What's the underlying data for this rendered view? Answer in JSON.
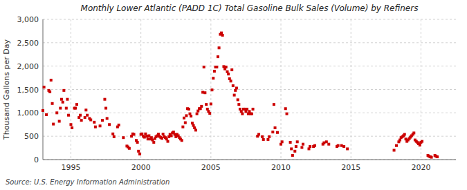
{
  "chart_data": {
    "type": "scatter",
    "title": "Monthly Lower Atlantic (PADD 1C) Total Gasoline Bulk Sales (Volume) by Refiners",
    "y_label": "Thousand Gallons per Day",
    "annotations": [
      "Source: U.S. Energy Information Administration"
    ],
    "color": "#cc0000",
    "marker": "square",
    "grid": true,
    "xlim": [
      1993.0,
      2022.5
    ],
    "ylim": [
      0,
      3000
    ],
    "xticks": [
      1995,
      2000,
      2005,
      2010,
      2015,
      2020
    ],
    "yticks": [
      0,
      500,
      {
        "value": 1000,
        "label": "1,000"
      },
      {
        "value": 1500,
        "label": "1,500"
      },
      {
        "value": 2000,
        "label": "2,000"
      },
      {
        "value": 2500,
        "label": "2,500"
      },
      {
        "value": 3000,
        "label": "3,000"
      }
    ],
    "x": [
      1993.0,
      1993.08,
      1993.25,
      1993.42,
      1993.5,
      1993.58,
      1993.67,
      1993.75,
      1994.0,
      1994.17,
      1994.25,
      1994.33,
      1994.42,
      1994.5,
      1994.67,
      1994.75,
      1994.83,
      1995.0,
      1995.08,
      1995.25,
      1995.33,
      1995.42,
      1995.58,
      1995.67,
      1995.75,
      1996.0,
      1996.08,
      1996.17,
      1996.33,
      1996.42,
      1996.67,
      1996.75,
      1997.08,
      1997.25,
      1997.42,
      1997.5,
      1997.58,
      1997.75,
      1998.0,
      1998.08,
      1998.33,
      1998.42,
      1998.75,
      1999.0,
      1999.08,
      1999.17,
      1999.33,
      1999.42,
      1999.5,
      1999.67,
      1999.75,
      1999.83,
      1999.92,
      2000.0,
      2000.08,
      2000.17,
      2000.25,
      2000.33,
      2000.42,
      2000.5,
      2000.58,
      2000.67,
      2000.75,
      2000.83,
      2000.92,
      2001.0,
      2001.08,
      2001.17,
      2001.25,
      2001.33,
      2001.42,
      2001.5,
      2001.58,
      2001.67,
      2001.75,
      2001.83,
      2001.92,
      2002.0,
      2002.08,
      2002.17,
      2002.25,
      2002.33,
      2002.42,
      2002.5,
      2002.58,
      2002.67,
      2002.75,
      2002.83,
      2002.92,
      2003.0,
      2003.08,
      2003.17,
      2003.25,
      2003.33,
      2003.42,
      2003.5,
      2003.58,
      2003.67,
      2003.75,
      2003.83,
      2003.92,
      2004.0,
      2004.08,
      2004.17,
      2004.25,
      2004.33,
      2004.42,
      2004.5,
      2004.58,
      2004.67,
      2004.75,
      2004.83,
      2004.92,
      2005.0,
      2005.08,
      2005.17,
      2005.25,
      2005.33,
      2005.42,
      2005.5,
      2005.58,
      2005.67,
      2005.75,
      2005.83,
      2005.92,
      2006.0,
      2006.08,
      2006.17,
      2006.25,
      2006.33,
      2006.42,
      2006.5,
      2006.58,
      2006.67,
      2006.75,
      2006.83,
      2006.92,
      2007.0,
      2007.08,
      2007.17,
      2007.25,
      2007.33,
      2007.42,
      2007.5,
      2007.58,
      2007.67,
      2007.75,
      2007.83,
      2007.92,
      2008.0,
      2008.33,
      2008.42,
      2008.67,
      2008.75,
      2009.08,
      2009.17,
      2009.42,
      2009.5,
      2009.58,
      2009.75,
      2010.0,
      2010.08,
      2010.33,
      2010.42,
      2010.67,
      2010.75,
      2010.83,
      2011.0,
      2011.08,
      2011.17,
      2011.5,
      2011.58,
      2012.0,
      2012.08,
      2012.33,
      2012.42,
      2013.0,
      2013.08,
      2013.25,
      2013.42,
      2014.0,
      2014.08,
      2014.33,
      2014.75,
      2014.5,
      2018.08,
      2018.25,
      2018.42,
      2018.5,
      2018.58,
      2018.67,
      2018.75,
      2018.83,
      2018.92,
      2019.0,
      2019.08,
      2019.17,
      2019.25,
      2019.33,
      2019.42,
      2019.5,
      2019.58,
      2019.67,
      2019.75,
      2019.83,
      2019.92,
      2020.0,
      2020.08,
      2020.5,
      2020.58,
      2020.67,
      2020.75,
      2021.0,
      2021.08,
      2021.17
    ],
    "values": [
      1050,
      1550,
      960,
      1480,
      1450,
      1700,
      1200,
      760,
      1000,
      820,
      1100,
      1290,
      1230,
      1480,
      1100,
      1290,
      950,
      750,
      680,
      1100,
      1100,
      1180,
      900,
      950,
      840,
      900,
      1060,
      950,
      880,
      850,
      800,
      700,
      720,
      840,
      1290,
      1100,
      880,
      750,
      550,
      490,
      700,
      740,
      470,
      290,
      270,
      240,
      500,
      550,
      540,
      410,
      370,
      180,
      120,
      540,
      550,
      500,
      480,
      550,
      500,
      440,
      510,
      440,
      470,
      420,
      370,
      450,
      490,
      510,
      545,
      495,
      475,
      455,
      545,
      490,
      470,
      440,
      390,
      490,
      540,
      510,
      570,
      590,
      540,
      490,
      540,
      510,
      470,
      440,
      410,
      700,
      890,
      790,
      940,
      1090,
      1080,
      980,
      930,
      780,
      730,
      680,
      630,
      980,
      1040,
      1090,
      1090,
      1140,
      1440,
      1980,
      1430,
      1180,
      1080,
      1030,
      990,
      1190,
      1490,
      1740,
      1890,
      1980,
      1980,
      2200,
      2390,
      2680,
      2710,
      2660,
      1990,
      1940,
      1980,
      1880,
      1830,
      1730,
      1680,
      1920,
      1580,
      1380,
      1480,
      1530,
      1280,
      1180,
      1080,
      1030,
      980,
      1080,
      1080,
      1030,
      1080,
      980,
      1030,
      980,
      980,
      1080,
      500,
      540,
      490,
      430,
      430,
      490,
      590,
      1180,
      680,
      580,
      330,
      380,
      1090,
      980,
      370,
      230,
      90,
      180,
      280,
      380,
      260,
      330,
      230,
      280,
      280,
      300,
      330,
      360,
      380,
      330,
      280,
      300,
      300,
      230,
      280,
      200,
      300,
      380,
      420,
      470,
      490,
      510,
      540,
      440,
      390,
      420,
      450,
      480,
      510,
      540,
      570,
      420,
      390,
      370,
      340,
      310,
      370,
      390,
      90,
      70,
      60,
      50,
      90,
      70,
      60
    ]
  }
}
